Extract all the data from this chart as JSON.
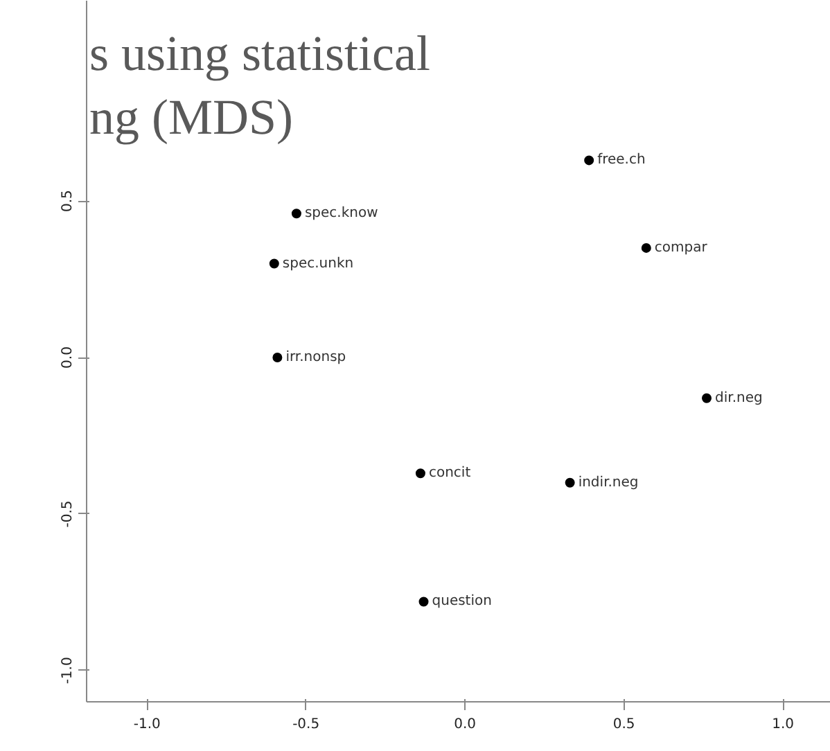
{
  "chart_data": {
    "type": "scatter",
    "title": "s using statistical\nng (MDS)",
    "xlim": [
      -1.19,
      1.15
    ],
    "ylim": [
      -1.1,
      1.14
    ],
    "xticks": [
      {
        "value": -1.0,
        "label": "-1.0"
      },
      {
        "value": -0.5,
        "label": "-0.5"
      },
      {
        "value": 0,
        "label": "0.0"
      },
      {
        "value": 0.5,
        "label": "0.5"
      },
      {
        "value": 1.0,
        "label": "1.0"
      }
    ],
    "yticks": [
      {
        "value": -1.0,
        "label": "-1.0"
      },
      {
        "value": -0.5,
        "label": "-0.5"
      },
      {
        "value": 0,
        "label": "0.0"
      },
      {
        "value": 0.5,
        "label": "0.5"
      }
    ],
    "grid": false,
    "legend": false,
    "marker": "circle",
    "series": [
      {
        "name": "free.ch",
        "color": "#000000",
        "x": [
          0.39
        ],
        "values": [
          0.63
        ]
      },
      {
        "name": "spec.know",
        "color": "#000000",
        "x": [
          -0.53
        ],
        "values": [
          0.46
        ]
      },
      {
        "name": "spec.unkn",
        "color": "#000000",
        "x": [
          -0.6
        ],
        "values": [
          0.3
        ]
      },
      {
        "name": "compar",
        "color": "#000000",
        "x": [
          0.57
        ],
        "values": [
          0.35
        ]
      },
      {
        "name": "irr.nonsp",
        "color": "#000000",
        "x": [
          -0.59
        ],
        "values": [
          0.0
        ]
      },
      {
        "name": "dir.neg",
        "color": "#000000",
        "x": [
          0.76
        ],
        "values": [
          -0.13
        ]
      },
      {
        "name": "concit",
        "color": "#000000",
        "x": [
          -0.14
        ],
        "values": [
          -0.37
        ]
      },
      {
        "name": "indir.neg",
        "color": "#000000",
        "x": [
          0.33
        ],
        "values": [
          -0.4
        ]
      },
      {
        "name": "question",
        "color": "#000000",
        "x": [
          -0.13
        ],
        "values": [
          -0.78
        ]
      }
    ]
  }
}
